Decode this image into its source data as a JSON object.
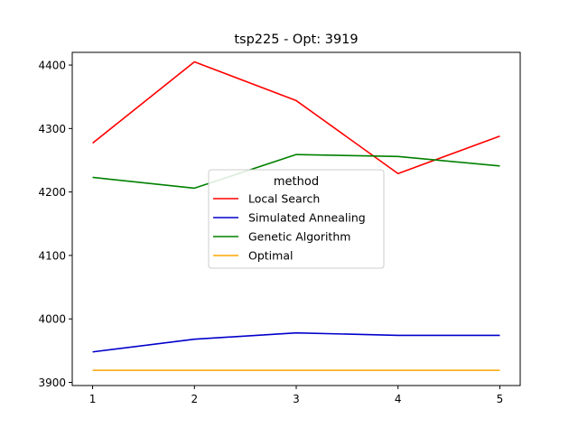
{
  "chart_data": {
    "type": "line",
    "title": "tsp225 - Opt: 3919",
    "xlabel": "",
    "ylabel": "",
    "x": [
      1,
      2,
      3,
      4,
      5
    ],
    "xticks": [
      "1",
      "2",
      "3",
      "4",
      "5"
    ],
    "yticks": [
      3900,
      4000,
      4100,
      4200,
      4300,
      4400
    ],
    "xlim": [
      0.8,
      5.2
    ],
    "ylim": [
      3895,
      4420
    ],
    "grid": false,
    "legend": {
      "title": "method",
      "placement": "center"
    },
    "series": [
      {
        "name": "Local Search",
        "color": "#ff0000",
        "values": [
          4277,
          4405,
          4344,
          4229,
          4288
        ]
      },
      {
        "name": "Simulated Annealing",
        "color": "#0000cc",
        "values": [
          3948,
          3968,
          3978,
          3974,
          3974
        ]
      },
      {
        "name": "Genetic Algorithm",
        "color": "#008000",
        "values": [
          4223,
          4206,
          4259,
          4256,
          4241
        ]
      },
      {
        "name": "Optimal",
        "color": "#ffa500",
        "values": [
          3919,
          3919,
          3919,
          3919,
          3919
        ]
      }
    ]
  }
}
